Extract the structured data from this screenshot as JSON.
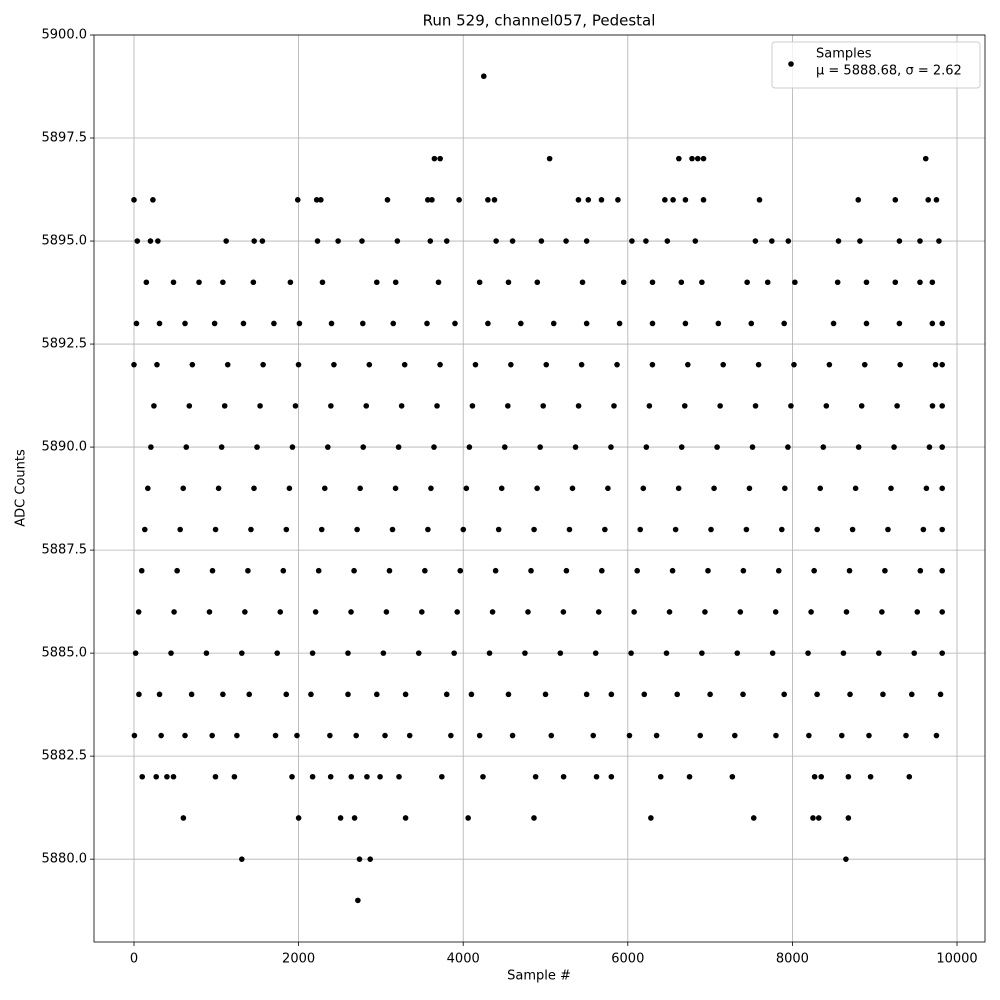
{
  "chart_data": {
    "type": "scatter",
    "title": "Run 529, channel057, Pedestal",
    "x_label": "Sample #",
    "y_label": "ADC Counts",
    "xlim": [
      -486,
      10340
    ],
    "ylim": [
      5877.99,
      5900
    ],
    "xticks": [
      0,
      2000,
      4000,
      6000,
      8000,
      10000
    ],
    "yticks": [
      {
        "value": 5880,
        "label": "5880.0"
      },
      5882.5,
      {
        "value": 5885,
        "label": "5885.0"
      },
      5887.5,
      {
        "value": 5890,
        "label": "5890.0"
      },
      5892.5,
      {
        "value": 5895,
        "label": "5895.0"
      },
      5897.5,
      {
        "value": 5900,
        "label": "5900.0"
      }
    ],
    "grid": true,
    "legend": "upper right",
    "annotation": "μ = 5888.68, σ = 2.62",
    "x": [
      20,
      450,
      880,
      1310,
      1740,
      2170,
      2600,
      3030,
      3460,
      3890,
      4320,
      4750,
      5180,
      5610,
      6040,
      6470,
      6900,
      7330,
      7760,
      8190,
      8620,
      9050,
      9480,
      9820,
      57,
      487,
      917,
      1347,
      1777,
      2207,
      2637,
      3067,
      3497,
      3927,
      4357,
      4787,
      5217,
      5647,
      6077,
      6507,
      6937,
      7367,
      7797,
      8227,
      8657,
      9087,
      9517,
      9820,
      94,
      524,
      954,
      1384,
      1814,
      2244,
      2674,
      3104,
      3534,
      3964,
      4394,
      4824,
      5254,
      5684,
      6114,
      6544,
      6974,
      7404,
      7834,
      8264,
      8694,
      9124,
      9554,
      9820,
      131,
      561,
      991,
      1421,
      1851,
      2281,
      2711,
      3141,
      3571,
      4001,
      4431,
      4861,
      5291,
      5721,
      6151,
      6581,
      7011,
      7441,
      7871,
      8301,
      8731,
      9161,
      9591,
      9820,
      168,
      598,
      1028,
      1458,
      1888,
      2318,
      2748,
      3178,
      3608,
      4038,
      4468,
      4898,
      5328,
      5758,
      6188,
      6618,
      7048,
      7478,
      7908,
      8338,
      8768,
      9198,
      9628,
      9820,
      205,
      635,
      1065,
      1495,
      1925,
      2355,
      2785,
      3215,
      3645,
      4075,
      4505,
      4935,
      5365,
      5795,
      6225,
      6655,
      7085,
      7515,
      7945,
      8375,
      8805,
      9235,
      9665,
      9820,
      242,
      672,
      1102,
      1532,
      1962,
      2392,
      2822,
      3252,
      3682,
      4112,
      4542,
      4972,
      5402,
      5832,
      6262,
      6692,
      7122,
      7552,
      7982,
      8412,
      8842,
      9272,
      9702,
      9820,
      0,
      279,
      709,
      1139,
      1569,
      1999,
      2429,
      2859,
      3289,
      3719,
      4149,
      4579,
      5009,
      5439,
      5869,
      6299,
      6729,
      7159,
      7589,
      8019,
      8449,
      8879,
      9309,
      9739,
      9820,
      30,
      310,
      620,
      980,
      1330,
      1700,
      2010,
      2400,
      2780,
      3150,
      3560,
      3900,
      4300,
      4700,
      5100,
      5500,
      5900,
      6300,
      6700,
      7100,
      7500,
      7900,
      8500,
      8900,
      9300,
      9700,
      9820,
      60,
      310,
      700,
      1080,
      1400,
      1850,
      2150,
      2600,
      2950,
      3300,
      3800,
      4100,
      4550,
      5000,
      5500,
      5800,
      6200,
      6600,
      7000,
      7400,
      7900,
      8300,
      8700,
      9100,
      9450,
      9800,
      5,
      330,
      620,
      950,
      1250,
      1720,
      1980,
      2380,
      2700,
      3050,
      3350,
      3850,
      4200,
      4600,
      5070,
      5580,
      6020,
      6350,
      6880,
      7300,
      7800,
      8200,
      8600,
      8930,
      9380,
      9750,
      150,
      480,
      790,
      1080,
      1450,
      1900,
      2290,
      2950,
      3180,
      3700,
      4200,
      4550,
      4900,
      5450,
      5950,
      6300,
      6650,
      6900,
      7450,
      7700,
      8030,
      8550,
      8900,
      9250,
      9550,
      9700,
      40,
      200,
      290,
      1120,
      1460,
      1560,
      2230,
      2480,
      2770,
      3200,
      3600,
      3800,
      4400,
      4600,
      4950,
      5250,
      5500,
      6050,
      6220,
      6480,
      6820,
      7550,
      7750,
      7950,
      8560,
      8820,
      9300,
      9550,
      9780,
      4250,
      3650,
      3720,
      5050,
      6620,
      6780,
      6850,
      6920,
      9620,
      0,
      230,
      1990,
      2220,
      2270,
      3080,
      3570,
      3620,
      3950,
      4300,
      4380,
      5400,
      5520,
      5680,
      5880,
      6450,
      6550,
      6700,
      6920,
      7600,
      8800,
      9250,
      9650,
      9750,
      100,
      270,
      400,
      480,
      990,
      1220,
      1920,
      2170,
      2390,
      2640,
      2830,
      2990,
      3220,
      3740,
      4240,
      4880,
      5220,
      5620,
      5800,
      6400,
      6750,
      7270,
      8270,
      8350,
      8680,
      8950,
      9420,
      600,
      2000,
      2510,
      2680,
      3300,
      4060,
      4860,
      6280,
      7530,
      8250,
      8320,
      8680,
      1310,
      2740,
      2870,
      8650,
      2720
    ],
    "series": [
      {
        "name": "Samples",
        "color": "#000000",
        "values": [
          5885,
          5885,
          5885,
          5885,
          5885,
          5885,
          5885,
          5885,
          5885,
          5885,
          5885,
          5885,
          5885,
          5885,
          5885,
          5885,
          5885,
          5885,
          5885,
          5885,
          5885,
          5885,
          5885,
          5885,
          5886,
          5886,
          5886,
          5886,
          5886,
          5886,
          5886,
          5886,
          5886,
          5886,
          5886,
          5886,
          5886,
          5886,
          5886,
          5886,
          5886,
          5886,
          5886,
          5886,
          5886,
          5886,
          5886,
          5886,
          5887,
          5887,
          5887,
          5887,
          5887,
          5887,
          5887,
          5887,
          5887,
          5887,
          5887,
          5887,
          5887,
          5887,
          5887,
          5887,
          5887,
          5887,
          5887,
          5887,
          5887,
          5887,
          5887,
          5887,
          5888,
          5888,
          5888,
          5888,
          5888,
          5888,
          5888,
          5888,
          5888,
          5888,
          5888,
          5888,
          5888,
          5888,
          5888,
          5888,
          5888,
          5888,
          5888,
          5888,
          5888,
          5888,
          5888,
          5888,
          5889,
          5889,
          5889,
          5889,
          5889,
          5889,
          5889,
          5889,
          5889,
          5889,
          5889,
          5889,
          5889,
          5889,
          5889,
          5889,
          5889,
          5889,
          5889,
          5889,
          5889,
          5889,
          5889,
          5889,
          5890,
          5890,
          5890,
          5890,
          5890,
          5890,
          5890,
          5890,
          5890,
          5890,
          5890,
          5890,
          5890,
          5890,
          5890,
          5890,
          5890,
          5890,
          5890,
          5890,
          5890,
          5890,
          5890,
          5890,
          5891,
          5891,
          5891,
          5891,
          5891,
          5891,
          5891,
          5891,
          5891,
          5891,
          5891,
          5891,
          5891,
          5891,
          5891,
          5891,
          5891,
          5891,
          5891,
          5891,
          5891,
          5891,
          5891,
          5891,
          5892,
          5892,
          5892,
          5892,
          5892,
          5892,
          5892,
          5892,
          5892,
          5892,
          5892,
          5892,
          5892,
          5892,
          5892,
          5892,
          5892,
          5892,
          5892,
          5892,
          5892,
          5892,
          5892,
          5892,
          5892,
          5893,
          5893,
          5893,
          5893,
          5893,
          5893,
          5893,
          5893,
          5893,
          5893,
          5893,
          5893,
          5893,
          5893,
          5893,
          5893,
          5893,
          5893,
          5893,
          5893,
          5893,
          5893,
          5893,
          5893,
          5893,
          5893,
          5893,
          5884,
          5884,
          5884,
          5884,
          5884,
          5884,
          5884,
          5884,
          5884,
          5884,
          5884,
          5884,
          5884,
          5884,
          5884,
          5884,
          5884,
          5884,
          5884,
          5884,
          5884,
          5884,
          5884,
          5884,
          5884,
          5884,
          5883,
          5883,
          5883,
          5883,
          5883,
          5883,
          5883,
          5883,
          5883,
          5883,
          5883,
          5883,
          5883,
          5883,
          5883,
          5883,
          5883,
          5883,
          5883,
          5883,
          5883,
          5883,
          5883,
          5883,
          5883,
          5883,
          5894,
          5894,
          5894,
          5894,
          5894,
          5894,
          5894,
          5894,
          5894,
          5894,
          5894,
          5894,
          5894,
          5894,
          5894,
          5894,
          5894,
          5894,
          5894,
          5894,
          5894,
          5894,
          5894,
          5894,
          5894,
          5894,
          5895,
          5895,
          5895,
          5895,
          5895,
          5895,
          5895,
          5895,
          5895,
          5895,
          5895,
          5895,
          5895,
          5895,
          5895,
          5895,
          5895,
          5895,
          5895,
          5895,
          5895,
          5895,
          5895,
          5895,
          5895,
          5895,
          5895,
          5895,
          5895,
          5899,
          5897,
          5897,
          5897,
          5897,
          5897,
          5897,
          5897,
          5897,
          5896,
          5896,
          5896,
          5896,
          5896,
          5896,
          5896,
          5896,
          5896,
          5896,
          5896,
          5896,
          5896,
          5896,
          5896,
          5896,
          5896,
          5896,
          5896,
          5896,
          5896,
          5896,
          5896,
          5896,
          5882,
          5882,
          5882,
          5882,
          5882,
          5882,
          5882,
          5882,
          5882,
          5882,
          5882,
          5882,
          5882,
          5882,
          5882,
          5882,
          5882,
          5882,
          5882,
          5882,
          5882,
          5882,
          5882,
          5882,
          5882,
          5882,
          5882,
          5881,
          5881,
          5881,
          5881,
          5881,
          5881,
          5881,
          5881,
          5881,
          5881,
          5881,
          5881,
          5880,
          5880,
          5880,
          5880,
          5879
        ]
      }
    ]
  }
}
